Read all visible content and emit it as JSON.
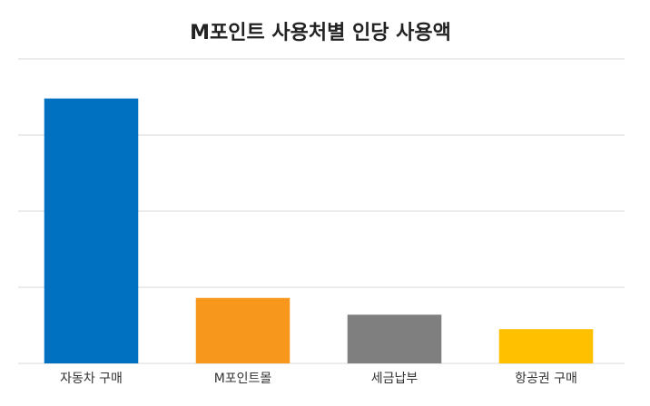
{
  "chart_data": {
    "type": "bar",
    "title": "M포인트 사용처별 인당 사용액",
    "categories": [
      "자동차 구매",
      "M포인트몰",
      "세금납부",
      "항공권 구매"
    ],
    "values": [
      348,
      86,
      64,
      45
    ],
    "colors": [
      "#0070c0",
      "#f7981d",
      "#7f7f7f",
      "#ffc000"
    ],
    "ylim": [
      0,
      400
    ],
    "yticks": [
      0,
      100,
      200,
      300,
      400
    ],
    "grid": true
  }
}
